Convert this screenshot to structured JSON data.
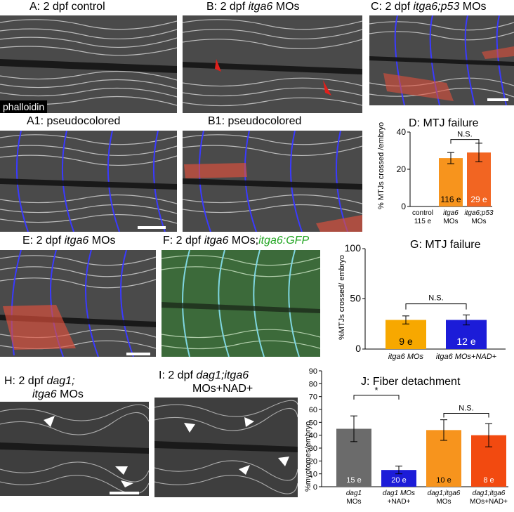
{
  "panels": {
    "A": {
      "title": "A: 2 dpf control",
      "tag": "phalloidin"
    },
    "B": {
      "title_pre": "B: 2 dpf ",
      "title_it": "itga6",
      "title_post": " MOs"
    },
    "C": {
      "title_pre": "C: 2 dpf ",
      "title_it": "itga6;p53",
      "title_post": " MOs"
    },
    "A1": {
      "title": "A1: pseudocolored"
    },
    "B1": {
      "title": "B1: pseudocolored"
    },
    "E": {
      "title_pre": "E: 2 dpf ",
      "title_it": "itga6",
      "title_post": " MOs"
    },
    "F": {
      "title_pre": "F: 2 dpf ",
      "title_it": "itga6",
      "title_mid": " MOs;",
      "title_green": "itga6:GFP"
    },
    "H": {
      "line1_pre": "H: 2 dpf ",
      "line1_it": "dag1;",
      "line2_it": "itga6",
      "line2_post": " MOs"
    },
    "I": {
      "line1_pre": "I: 2 dpf ",
      "line1_it": "dag1;itga6",
      "line2": "MOs+NAD+"
    }
  },
  "chart_data": [
    {
      "type": "bar",
      "title": "D: MTJ failure",
      "ylabel": "% MTJs crossed /embryo",
      "ylim": [
        0,
        40
      ],
      "yticks": [
        "0",
        "20",
        "40"
      ],
      "categories": [
        "control 115 e",
        "itga6 MOs",
        "itga6;p53 MOs"
      ],
      "cat_line1": [
        "control",
        "itga6",
        "itga6;p53"
      ],
      "cat_line2": [
        "115 e",
        "MOs",
        "MOs"
      ],
      "values": [
        0,
        26,
        29
      ],
      "errors": [
        0,
        3,
        5
      ],
      "bar_labels": [
        "",
        "116 e",
        "29 e"
      ],
      "colors": [
        "#f7941d",
        "#f7941d",
        "#f26522"
      ],
      "annotation": "N.S."
    },
    {
      "type": "bar",
      "title": "G: MTJ failure",
      "ylabel": "%MTJs crossed/ embryo",
      "ylim": [
        0,
        100
      ],
      "yticks": [
        "0",
        "50",
        "100"
      ],
      "categories": [
        "itga6 MOs",
        "itga6 MOs+NAD+"
      ],
      "values": [
        29,
        29
      ],
      "errors": [
        4,
        5
      ],
      "bar_labels": [
        "9 e",
        "12 e"
      ],
      "colors": [
        "#f7a800",
        "#1c1cd8"
      ],
      "annotation": "N.S."
    },
    {
      "type": "bar",
      "title": "J: Fiber detachment",
      "ylabel": "%myotomes/embryo",
      "ylim": [
        0,
        90
      ],
      "yticks": [
        "0",
        "10",
        "20",
        "30",
        "40",
        "50",
        "60",
        "70",
        "80",
        "90"
      ],
      "categories": [
        "dag1 MOs",
        "dag1 MOs +NAD+",
        "dag1;itga6 MOs",
        "dag1;itga6 MOs+NAD+"
      ],
      "cat_line1": [
        "dag1",
        "dag1 MOs",
        "dag1;itga6",
        "dag1;itga6"
      ],
      "cat_line2": [
        "MOs",
        "+NAD+",
        "MOs",
        "MOs+NAD+"
      ],
      "values": [
        45,
        13,
        44,
        40
      ],
      "errors": [
        10,
        3,
        8,
        9
      ],
      "bar_labels": [
        "15 e",
        "20 e",
        "10 e",
        "8 e"
      ],
      "colors": [
        "#6b6b6b",
        "#1c1cd8",
        "#f7941d",
        "#f24a10"
      ],
      "annotations": [
        "*",
        "N.S."
      ]
    }
  ]
}
